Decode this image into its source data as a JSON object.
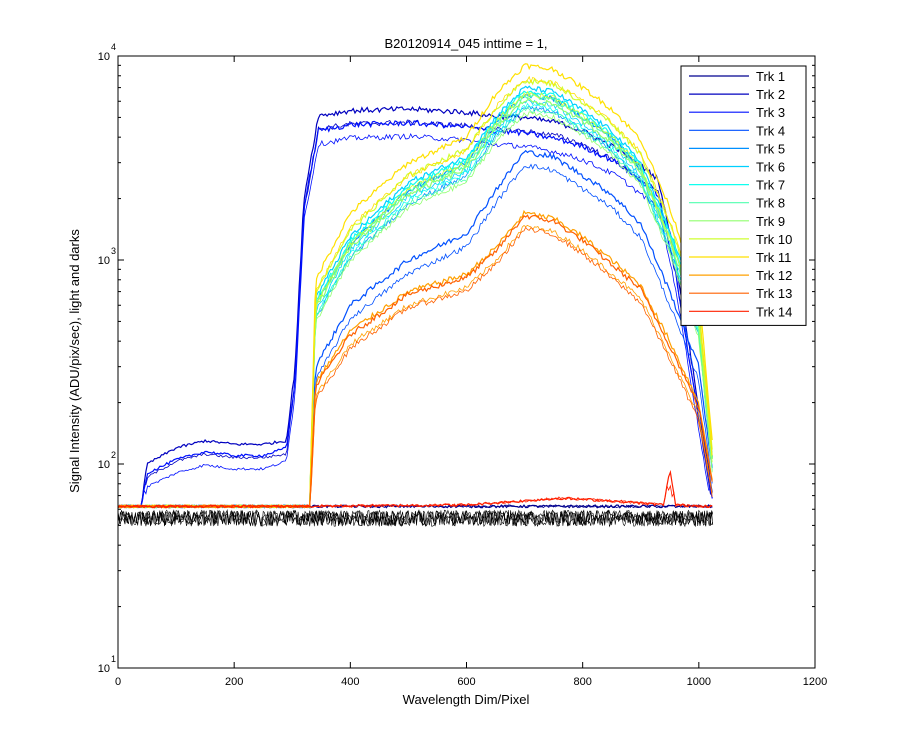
{
  "chart_data": {
    "type": "line",
    "title": "B20120914_045 inttime = 1,",
    "xlabel": "Wavelength Dim/Pixel",
    "ylabel": "Signal Intensity (ADU/pix/sec), light and darks",
    "xlim": [
      0,
      1200
    ],
    "ylim": [
      10,
      10000
    ],
    "yscale": "log",
    "grid": false,
    "legend_position": "top-right",
    "x_ticks": [
      "0",
      "200",
      "400",
      "600",
      "800",
      "1000",
      "1200"
    ],
    "y_ticks": [
      {
        "base": "10",
        "exp": "1"
      },
      {
        "base": "10",
        "exp": "2"
      },
      {
        "base": "10",
        "exp": "3"
      },
      {
        "base": "10",
        "exp": "4"
      }
    ],
    "darks": {
      "level": 55,
      "color": "#000000"
    },
    "series": [
      {
        "name": "Trk 1",
        "color": "#00008F",
        "shape": "flat",
        "x": [
          0,
          40,
          300,
          330,
          360,
          960,
          1024
        ],
        "y": [
          62,
          62,
          62,
          62,
          62,
          62,
          62
        ]
      },
      {
        "name": "Trk 2",
        "color": "#0000BF",
        "shape": "step",
        "x": [
          0,
          40,
          50,
          100,
          150,
          200,
          250,
          290,
          305,
          320,
          345,
          400,
          500,
          600,
          640,
          700,
          760,
          800,
          860,
          930,
          960,
          1024
        ],
        "y": [
          62,
          62,
          100,
          120,
          130,
          125,
          125,
          130,
          300,
          2000,
          5100,
          5400,
          5500,
          5300,
          5100,
          5000,
          4700,
          4300,
          3500,
          2500,
          1000,
          70
        ]
      },
      {
        "name": "Trk 3",
        "color": "#0010FF",
        "shape": "step",
        "x": [
          0,
          40,
          50,
          100,
          150,
          200,
          250,
          290,
          305,
          320,
          345,
          400,
          500,
          600,
          640,
          700,
          760,
          800,
          860,
          930,
          960,
          1024
        ],
        "y": [
          62,
          62,
          90,
          105,
          115,
          110,
          110,
          120,
          260,
          1800,
          4300,
          4600,
          4700,
          4500,
          4300,
          4200,
          3900,
          3600,
          3000,
          2100,
          850,
          65
        ]
      },
      {
        "name": "Trk 4",
        "color": "#0050FF",
        "shape": "bell",
        "x": [
          0,
          300,
          330,
          340,
          400,
          500,
          600,
          650,
          700,
          750,
          800,
          850,
          900,
          950,
          1000,
          1024
        ],
        "y": [
          62,
          62,
          62,
          300,
          600,
          1000,
          1350,
          2200,
          3400,
          3200,
          2600,
          2100,
          1500,
          700,
          300,
          90
        ]
      },
      {
        "name": "Trk 5",
        "color": "#0090FF",
        "shape": "bell",
        "x": [
          0,
          300,
          330,
          340,
          400,
          500,
          600,
          650,
          700,
          750,
          800,
          850,
          900,
          950,
          1000,
          1024
        ],
        "y": [
          62,
          62,
          62,
          600,
          1200,
          2200,
          3000,
          4700,
          6500,
          6200,
          5000,
          4000,
          2800,
          1300,
          500,
          100
        ]
      },
      {
        "name": "Trk 6",
        "color": "#00D0FF",
        "shape": "bell",
        "x": [
          0,
          300,
          330,
          340,
          400,
          500,
          600,
          650,
          700,
          750,
          800,
          850,
          900,
          950,
          1000,
          1024
        ],
        "y": [
          62,
          62,
          62,
          650,
          1300,
          2400,
          3200,
          5000,
          7000,
          6700,
          5400,
          4300,
          3000,
          1400,
          550,
          100
        ]
      },
      {
        "name": "Trk 7",
        "color": "#10FFEF",
        "shape": "bell",
        "x": [
          0,
          300,
          330,
          340,
          400,
          500,
          600,
          650,
          700,
          750,
          800,
          850,
          900,
          950,
          1000,
          1024
        ],
        "y": [
          62,
          62,
          62,
          620,
          1250,
          2300,
          3100,
          4800,
          6700,
          6400,
          5200,
          4100,
          2900,
          1350,
          520,
          100
        ]
      },
      {
        "name": "Trk 8",
        "color": "#50FFAF",
        "shape": "bell",
        "x": [
          0,
          300,
          330,
          340,
          400,
          500,
          600,
          650,
          700,
          750,
          800,
          850,
          900,
          950,
          1000,
          1024
        ],
        "y": [
          62,
          62,
          62,
          600,
          1200,
          2200,
          2900,
          4600,
          6400,
          6100,
          5000,
          3900,
          2800,
          1300,
          500,
          100
        ]
      },
      {
        "name": "Trk 9",
        "color": "#90FF6F",
        "shape": "bell",
        "x": [
          0,
          300,
          330,
          340,
          400,
          500,
          600,
          650,
          700,
          750,
          800,
          850,
          900,
          950,
          1000,
          1024
        ],
        "y": [
          62,
          62,
          62,
          580,
          1150,
          2100,
          2800,
          4400,
          6100,
          5800,
          4800,
          3800,
          2700,
          1250,
          480,
          100
        ]
      },
      {
        "name": "Trk 10",
        "color": "#CFFF30",
        "shape": "bell",
        "x": [
          0,
          300,
          330,
          340,
          400,
          500,
          600,
          650,
          700,
          750,
          800,
          850,
          900,
          950,
          1000,
          1024
        ],
        "y": [
          62,
          62,
          62,
          700,
          1400,
          2600,
          3500,
          5500,
          7600,
          7300,
          5900,
          4700,
          3300,
          1500,
          600,
          110
        ]
      },
      {
        "name": "Trk 11",
        "color": "#FFE000",
        "shape": "bell",
        "x": [
          0,
          300,
          330,
          340,
          400,
          500,
          600,
          650,
          700,
          750,
          800,
          850,
          900,
          950,
          1000,
          1024
        ],
        "y": [
          62,
          62,
          62,
          800,
          1700,
          3000,
          4000,
          6500,
          9000,
          8600,
          7000,
          5500,
          3900,
          1800,
          700,
          120
        ]
      },
      {
        "name": "Trk 12",
        "color": "#FFA000",
        "shape": "bell",
        "x": [
          0,
          300,
          330,
          340,
          400,
          500,
          600,
          650,
          700,
          750,
          800,
          850,
          900,
          950,
          1000,
          1024
        ],
        "y": [
          62,
          62,
          62,
          250,
          450,
          700,
          850,
          1150,
          1700,
          1600,
          1300,
          1000,
          750,
          400,
          200,
          80
        ]
      },
      {
        "name": "Trk 13",
        "color": "#FF6000",
        "shape": "bell",
        "x": [
          0,
          300,
          330,
          340,
          400,
          500,
          600,
          650,
          700,
          750,
          800,
          850,
          900,
          950,
          1000,
          1024
        ],
        "y": [
          62,
          62,
          62,
          240,
          430,
          680,
          820,
          1100,
          1650,
          1550,
          1250,
          950,
          720,
          380,
          190,
          78
        ]
      },
      {
        "name": "Trk 14",
        "color": "#FF2000",
        "shape": "flat",
        "x": [
          0,
          300,
          600,
          700,
          760,
          850,
          940,
          950,
          960,
          1024
        ],
        "y": [
          62,
          62,
          63,
          66,
          68,
          66,
          63,
          95,
          63,
          62
        ]
      }
    ]
  }
}
